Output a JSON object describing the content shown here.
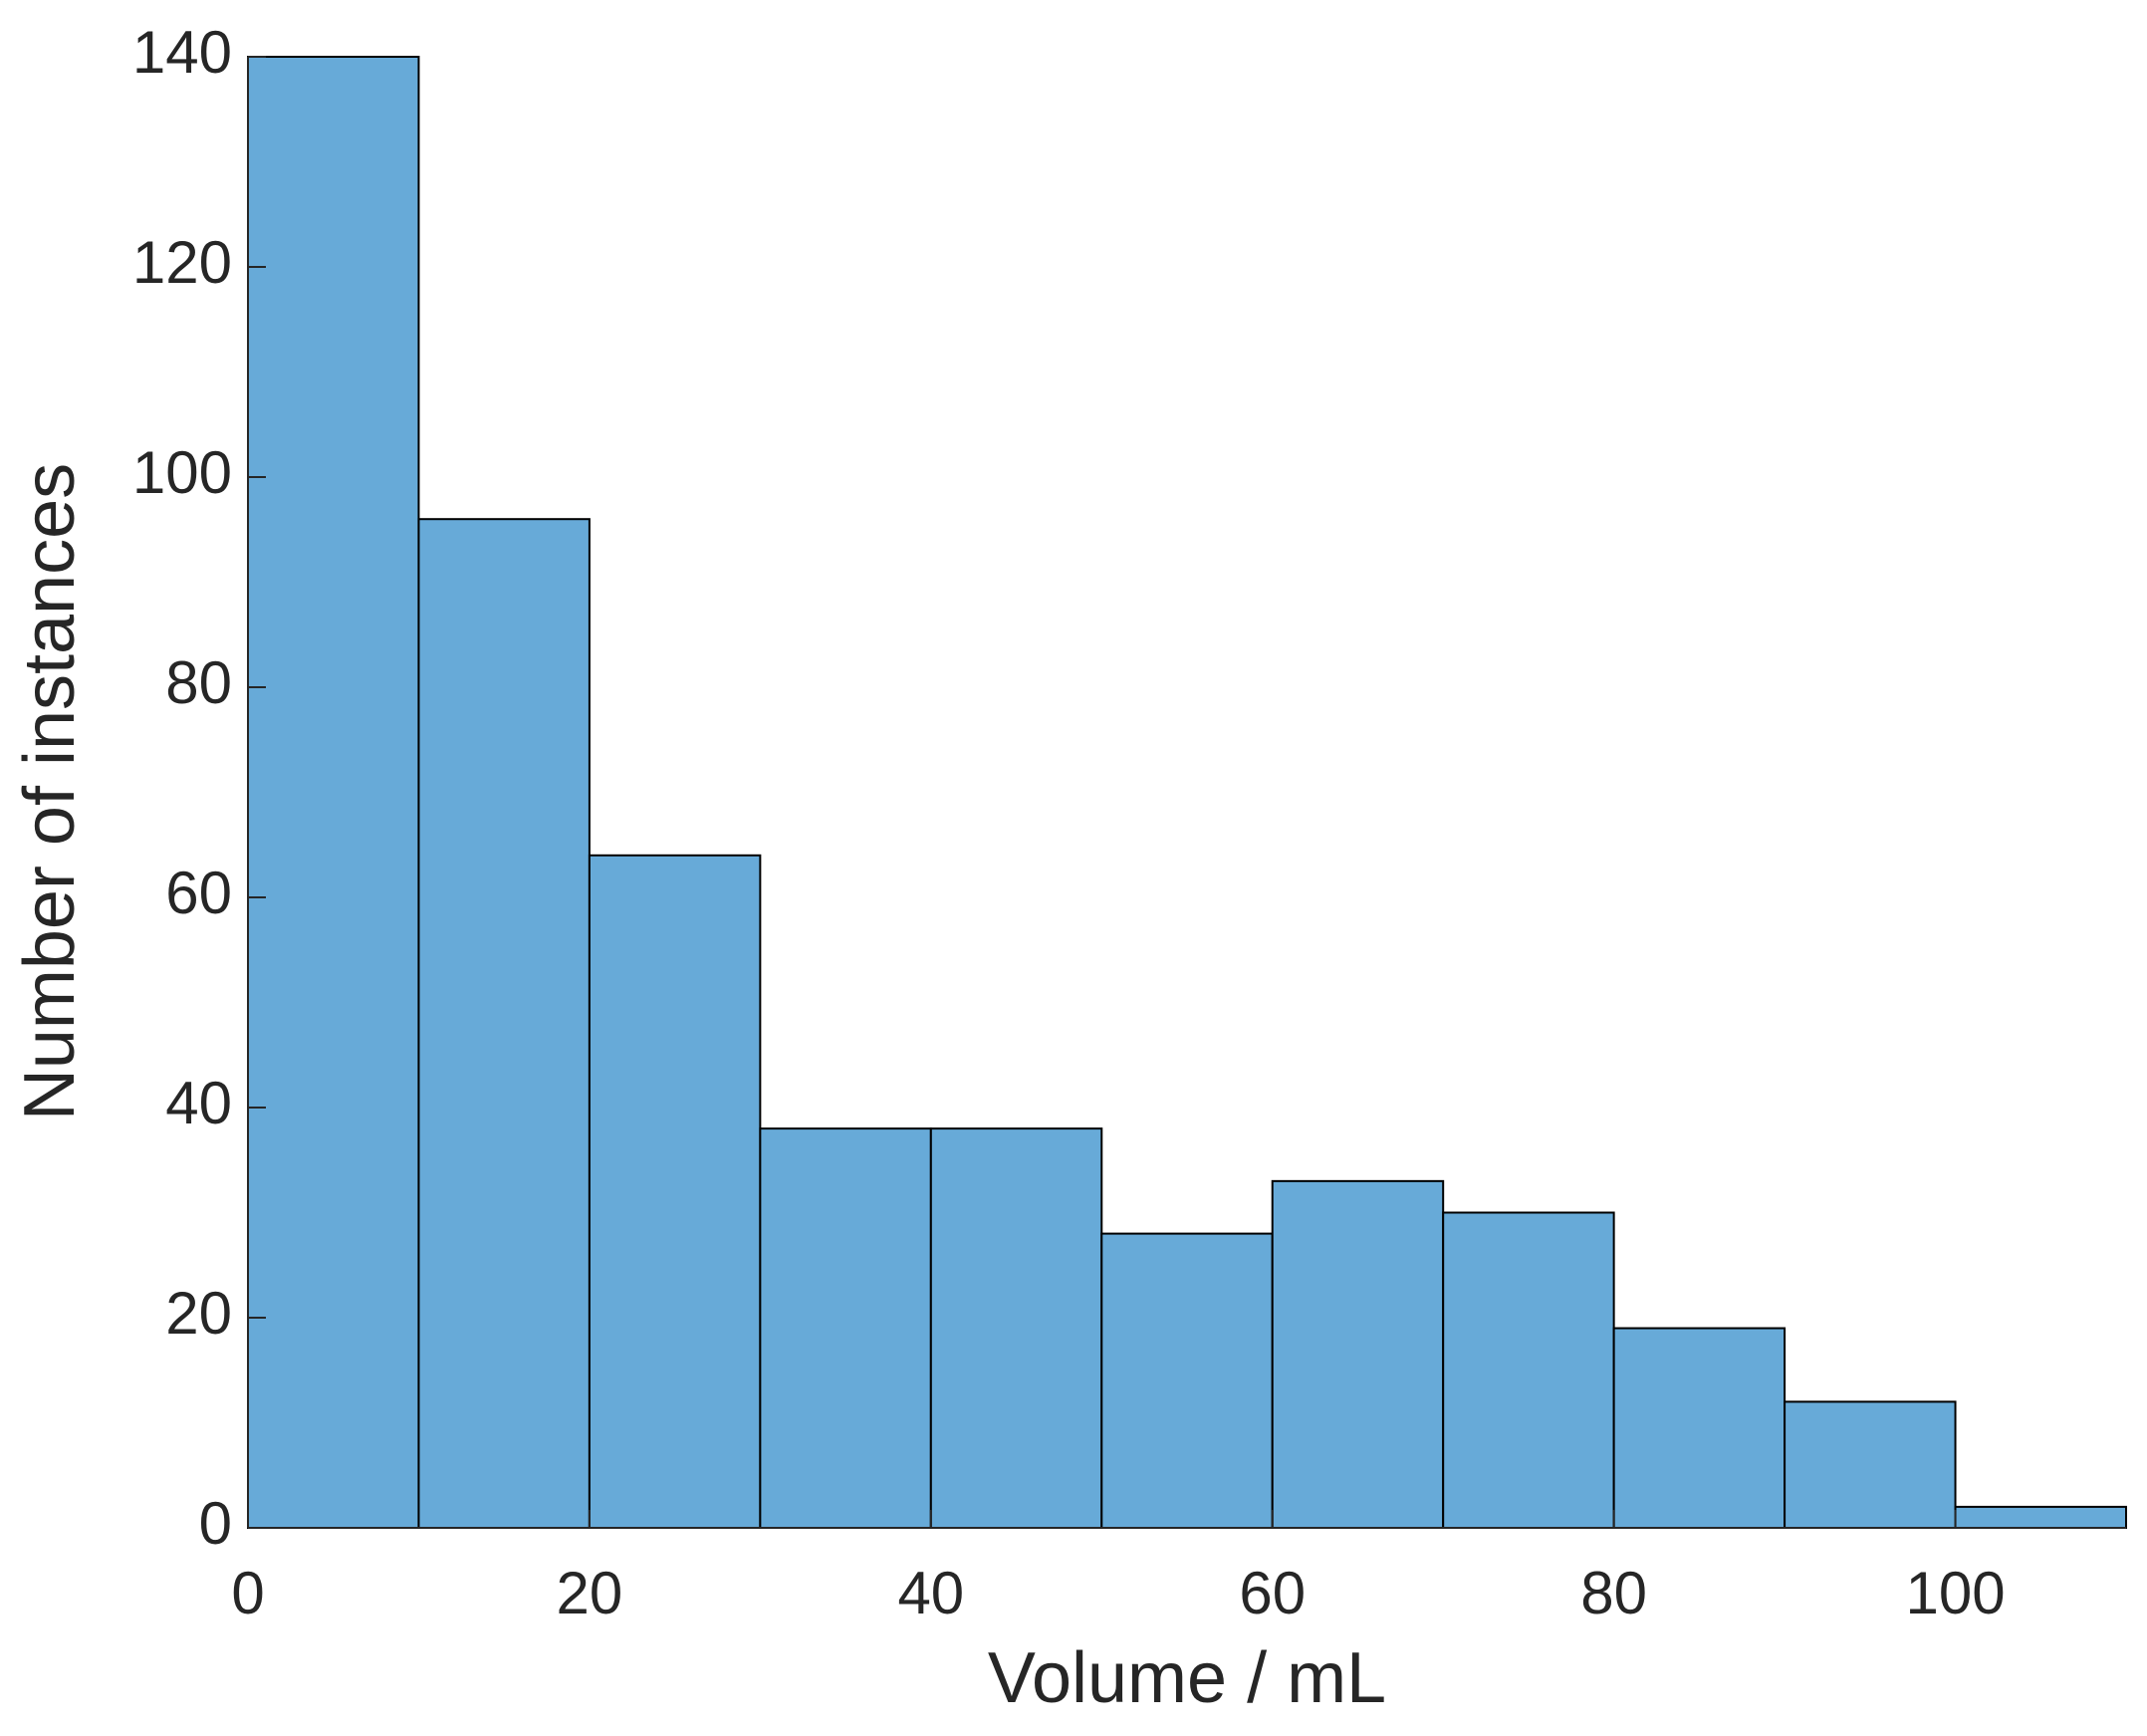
{
  "chart_data": {
    "type": "histogram",
    "x_label": "Volume / mL",
    "y_label": "Number of instances",
    "bins": [
      0,
      10,
      20,
      30,
      40,
      50,
      60,
      70,
      80,
      90,
      100,
      110
    ],
    "values": [
      140,
      96,
      64,
      38,
      38,
      28,
      33,
      30,
      19,
      12,
      2
    ],
    "color": "#67aad8",
    "edge_color": "#000000",
    "xlim": [
      0,
      110
    ],
    "xticks": [
      0,
      20,
      40,
      60,
      80,
      100
    ],
    "ylim": [
      0,
      140
    ],
    "yticks": [
      0,
      20,
      40,
      60,
      80,
      100,
      120,
      140
    ],
    "grid": false
  }
}
